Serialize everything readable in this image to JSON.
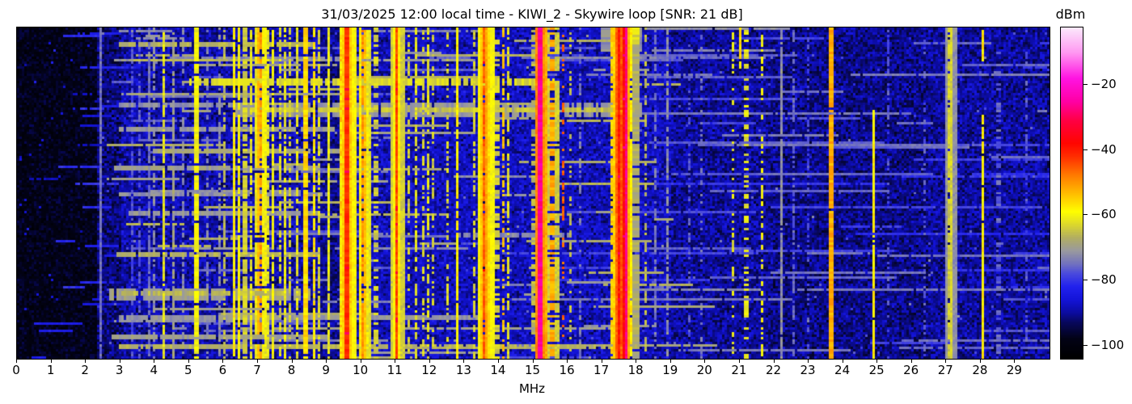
{
  "figure": {
    "title": "31/03/2025 12:00 local time - KIWI_2 - Skywire loop [SNR: 21 dB]"
  },
  "chart_data": {
    "type": "heatmap",
    "subtype": "radio-spectrogram",
    "title": "31/03/2025 12:00 local time - KIWI_2 - Skywire loop [SNR: 21 dB]",
    "xlabel": "MHz",
    "x_range": [
      0,
      30
    ],
    "x_ticks": [
      0,
      1,
      2,
      3,
      4,
      5,
      6,
      7,
      8,
      9,
      10,
      11,
      12,
      13,
      14,
      15,
      16,
      17,
      18,
      19,
      20,
      21,
      22,
      23,
      24,
      25,
      26,
      27,
      28,
      29
    ],
    "grid": false,
    "colorbar": {
      "label": "dBm",
      "ticks": [
        -20,
        -40,
        -60,
        -80,
        -100
      ],
      "vmin": -104,
      "vmax": -2.5,
      "position": "right"
    },
    "colormap": [
      [
        -104,
        "#000000"
      ],
      [
        -98,
        "#030316"
      ],
      [
        -93,
        "#08085c"
      ],
      [
        -90,
        "#0c0ca0"
      ],
      [
        -86,
        "#1414d8"
      ],
      [
        -82,
        "#2222ee"
      ],
      [
        -78,
        "#4a4ade"
      ],
      [
        -75,
        "#7272c0"
      ],
      [
        -71,
        "#9a9aa0"
      ],
      [
        -67,
        "#b2ae62"
      ],
      [
        -63,
        "#dcd82e"
      ],
      [
        -59,
        "#ffff00"
      ],
      [
        -54,
        "#ffc400"
      ],
      [
        -48,
        "#ff7e00"
      ],
      [
        -42,
        "#ff2e00"
      ],
      [
        -38,
        "#ff0600"
      ],
      [
        -31,
        "#ff0044"
      ],
      [
        -25,
        "#ff00a6"
      ],
      [
        -18,
        "#ff14e2"
      ],
      [
        -10,
        "#ff9af2"
      ],
      [
        -2.5,
        "#fce9fc"
      ]
    ],
    "noise": {
      "seed": 1337,
      "grid_cols": 426,
      "grid_rows": 137,
      "speckle_prob": 0.006,
      "speckle_boost": 13,
      "base_regions": [
        [
          0.0,
          2.3,
          -98,
          5
        ],
        [
          2.3,
          3.0,
          -92,
          7
        ],
        [
          3.0,
          8.8,
          -89,
          7
        ],
        [
          8.8,
          9.45,
          -91,
          6
        ],
        [
          9.45,
          12.3,
          -88,
          7
        ],
        [
          12.3,
          19.0,
          -88,
          7
        ],
        [
          19.0,
          21.8,
          -90,
          7
        ],
        [
          21.8,
          26.5,
          -91,
          7
        ],
        [
          26.5,
          30.0,
          -90,
          7
        ]
      ]
    },
    "signals_order": "freq_MHz, width_MHz, level_dBm, duty, y1_frac, y2_frac, halo_w_MHz, halo_level_dBm, sparkle_prob",
    "signals": [
      [
        2.46,
        0.05,
        -75,
        0.95,
        0,
        1,
        0,
        0,
        0
      ],
      [
        3.32,
        0.04,
        -78,
        0.7,
        0,
        1,
        0,
        0,
        0
      ],
      [
        3.55,
        0.04,
        -77,
        0.6,
        0,
        1,
        0,
        0,
        0
      ],
      [
        3.83,
        0.04,
        -75,
        0.8,
        0,
        1,
        0,
        0,
        0
      ],
      [
        4.0,
        0.04,
        -72,
        0.6,
        0,
        1,
        0,
        0,
        0
      ],
      [
        4.23,
        0.05,
        -62,
        0.9,
        0,
        1,
        0,
        0,
        0
      ],
      [
        4.57,
        0.04,
        -70,
        0.8,
        0,
        1,
        0,
        0,
        0
      ],
      [
        4.82,
        0.04,
        -73,
        0.5,
        0,
        1,
        0,
        0,
        0
      ],
      [
        5.21,
        0.05,
        -60,
        0.95,
        0,
        1,
        0,
        0,
        0
      ],
      [
        5.55,
        0.04,
        -74,
        0.5,
        0,
        1,
        0,
        0,
        0
      ],
      [
        5.85,
        0.04,
        -72,
        0.6,
        0,
        1,
        0,
        0,
        0
      ],
      [
        6.05,
        0.04,
        -66,
        0.7,
        0,
        1,
        0,
        0,
        0
      ],
      [
        6.28,
        0.06,
        -58,
        0.95,
        0,
        1,
        0,
        0,
        0
      ],
      [
        6.42,
        0.05,
        -59,
        0.9,
        0,
        1,
        0,
        0,
        0
      ],
      [
        6.62,
        0.04,
        -64,
        0.8,
        0,
        1,
        0,
        0,
        0
      ],
      [
        6.8,
        0.05,
        -62,
        0.75,
        0,
        1,
        0,
        0,
        0
      ],
      [
        7.05,
        0.05,
        -51,
        0.65,
        0,
        1,
        0.08,
        -62,
        0
      ],
      [
        7.19,
        0.04,
        -60,
        0.8,
        0,
        1,
        0,
        0,
        0
      ],
      [
        7.31,
        0.04,
        -62,
        0.7,
        0,
        1,
        0,
        0,
        0
      ],
      [
        7.43,
        0.05,
        -60,
        0.85,
        0,
        1,
        0,
        0,
        0
      ],
      [
        7.61,
        0.04,
        -63,
        0.6,
        0,
        1,
        0,
        0,
        0
      ],
      [
        7.79,
        0.05,
        -61,
        0.8,
        0,
        1,
        0,
        0,
        0
      ],
      [
        7.92,
        0.04,
        -64,
        0.6,
        0,
        1,
        0,
        0,
        0
      ],
      [
        8.12,
        0.05,
        -62,
        0.75,
        0,
        1,
        0,
        0,
        0
      ],
      [
        8.38,
        0.07,
        -56,
        0.95,
        0,
        1,
        0,
        0,
        0
      ],
      [
        8.61,
        0.06,
        -57,
        0.9,
        0,
        1,
        0,
        0,
        0
      ],
      [
        8.76,
        0.03,
        -63,
        0.7,
        0,
        1,
        0,
        0,
        0
      ],
      [
        9.06,
        0.04,
        -61,
        0.9,
        0,
        1,
        0,
        0,
        0
      ],
      [
        9.41,
        0.05,
        -55,
        0.5,
        0,
        1,
        0,
        0,
        0
      ],
      [
        9.58,
        0.07,
        -42,
        1,
        0,
        1,
        0.16,
        -60,
        0.05
      ],
      [
        9.95,
        0.05,
        -58,
        0.9,
        0,
        1,
        0,
        0,
        0
      ],
      [
        10.06,
        0.05,
        -50,
        0.75,
        0,
        1,
        0.06,
        -62,
        0
      ],
      [
        10.18,
        0.04,
        -60,
        0.6,
        0,
        1,
        0,
        0,
        0
      ],
      [
        10.42,
        0.04,
        -64,
        0.5,
        0,
        1,
        0,
        0,
        0
      ],
      [
        11.03,
        0.05,
        -44,
        1,
        0,
        1,
        0.08,
        -64,
        0.04
      ],
      [
        11.36,
        0.04,
        -64,
        0.5,
        0,
        1,
        0,
        0,
        0
      ],
      [
        11.61,
        0.05,
        -62,
        0.6,
        0,
        1,
        0,
        0,
        0
      ],
      [
        11.77,
        0.04,
        -63,
        0.5,
        0,
        1,
        0,
        0,
        0
      ],
      [
        11.91,
        0.05,
        -62,
        0.6,
        0,
        1,
        0,
        0,
        0
      ],
      [
        12.1,
        0.04,
        -64,
        0.45,
        0,
        1,
        0,
        0,
        0
      ],
      [
        12.51,
        0.04,
        -63,
        0.5,
        0,
        1,
        0,
        0,
        0
      ],
      [
        12.8,
        0.05,
        -58,
        0.95,
        0,
        1,
        0,
        0,
        0
      ],
      [
        13.28,
        0.04,
        -64,
        0.6,
        0,
        1,
        0,
        0,
        0
      ],
      [
        13.58,
        0.07,
        -46,
        0.9,
        0,
        1,
        0.14,
        -60,
        0.03
      ],
      [
        13.77,
        0.05,
        -60,
        0.7,
        0,
        1,
        0,
        0,
        0
      ],
      [
        13.95,
        0.12,
        -64,
        0.55,
        0,
        1,
        0,
        0,
        0
      ],
      [
        14.1,
        0.05,
        -54,
        0.6,
        0,
        1,
        0,
        0,
        0
      ],
      [
        14.24,
        0.04,
        -62,
        0.6,
        0,
        1,
        0,
        0,
        0
      ],
      [
        15.0,
        0.03,
        -66,
        0.5,
        0,
        1,
        0,
        0,
        0
      ],
      [
        15.21,
        0.05,
        -26,
        1,
        0,
        1,
        0.1,
        -52,
        0
      ],
      [
        15.56,
        0.05,
        -52,
        0.7,
        0,
        1,
        0.06,
        -64,
        0
      ],
      [
        15.88,
        0.05,
        -46,
        0.35,
        0,
        1,
        0,
        0,
        0
      ],
      [
        16.1,
        0.04,
        -65,
        0.4,
        0,
        1,
        0,
        0,
        0
      ],
      [
        16.35,
        0.03,
        -74,
        0.5,
        0,
        1,
        0,
        0,
        0
      ],
      [
        17.3,
        0.06,
        -55,
        0.8,
        0,
        1,
        0,
        0,
        0
      ],
      [
        17.47,
        0.06,
        -40,
        1,
        0,
        1,
        0.05,
        -55,
        0.03
      ],
      [
        17.57,
        0.07,
        -45,
        0.95,
        0,
        1,
        0,
        0,
        0
      ],
      [
        17.64,
        0.05,
        -38,
        1,
        0,
        1,
        0.04,
        -52,
        0.04
      ],
      [
        17.73,
        0.04,
        -27,
        1,
        0,
        1,
        0,
        0,
        0
      ],
      [
        17.86,
        0.1,
        -58,
        0.9,
        0,
        1,
        0,
        0,
        0
      ],
      [
        18.02,
        0.22,
        -68,
        0.9,
        0,
        1,
        0,
        0,
        0
      ],
      [
        17.6,
        1.2,
        -72,
        1,
        0,
        0.07,
        0,
        0,
        0
      ],
      [
        17.75,
        0.7,
        -63,
        1,
        0,
        0.05,
        0,
        0,
        0
      ],
      [
        18.3,
        0.04,
        -66,
        0.5,
        0,
        1,
        0,
        0,
        0
      ],
      [
        18.56,
        0.03,
        -74,
        0.6,
        0,
        1,
        0,
        0,
        0
      ],
      [
        18.92,
        0.04,
        -72,
        0.7,
        0,
        1,
        0,
        0,
        0
      ],
      [
        19.52,
        0.03,
        -77,
        0.4,
        0,
        1,
        0,
        0,
        0
      ],
      [
        19.9,
        0.03,
        -75,
        0.4,
        0,
        1,
        0,
        0,
        0
      ],
      [
        20.8,
        0.05,
        -62,
        0.35,
        0,
        1,
        0,
        0,
        0
      ],
      [
        21.05,
        0.05,
        -56,
        0.9,
        0,
        0.12,
        0,
        0,
        0
      ],
      [
        21.2,
        0.05,
        -62,
        0.4,
        0,
        1,
        0,
        0,
        0
      ],
      [
        21.65,
        0.06,
        -60,
        0.45,
        0,
        1,
        0,
        0,
        0
      ],
      [
        22.2,
        0.04,
        -72,
        0.95,
        0,
        1,
        0,
        0,
        0
      ],
      [
        22.55,
        0.03,
        -76,
        0.6,
        0,
        1,
        0,
        0,
        0
      ],
      [
        23.0,
        0.03,
        -78,
        0.4,
        0,
        1,
        0,
        0,
        0
      ],
      [
        23.66,
        0.05,
        -52,
        0.98,
        0,
        1,
        0,
        0,
        0
      ],
      [
        24.88,
        0.05,
        -58,
        0.95,
        0.25,
        1,
        0,
        0,
        0
      ],
      [
        25.32,
        0.03,
        -77,
        0.4,
        0,
        1,
        0,
        0,
        0
      ],
      [
        26.4,
        0.03,
        -77,
        0.35,
        0,
        1,
        0,
        0,
        0
      ],
      [
        27.1,
        0.09,
        -64,
        0.8,
        0,
        1,
        0.05,
        -72,
        0
      ],
      [
        28.08,
        0.05,
        -57,
        0.95,
        0,
        0.1,
        0,
        0,
        0
      ],
      [
        28.08,
        0.04,
        -58,
        0.95,
        0.27,
        1,
        0,
        0,
        0
      ],
      [
        28.52,
        0.03,
        -76,
        0.4,
        0,
        1,
        0,
        0,
        0
      ],
      [
        29.3,
        0.03,
        -77,
        0.35,
        0,
        1,
        0,
        0,
        0
      ]
    ],
    "h_bands_order": "y1_frac, y2_frac, f1_MHz, f2_MHz, level_dBm",
    "h_bands": [
      [
        0.05,
        0.056,
        3.0,
        8.6,
        -67
      ],
      [
        0.095,
        0.1,
        2.8,
        13.5,
        -71
      ],
      [
        0.16,
        0.172,
        5.0,
        15.6,
        -63
      ],
      [
        0.198,
        0.204,
        3.0,
        10.0,
        -69
      ],
      [
        0.228,
        0.268,
        6.4,
        18.1,
        -71
      ],
      [
        0.243,
        0.252,
        6.8,
        17.9,
        -65
      ],
      [
        0.232,
        0.24,
        3.0,
        6.4,
        -72
      ],
      [
        0.3,
        0.307,
        3.0,
        9.2,
        -71
      ],
      [
        0.37,
        0.377,
        4.0,
        9.6,
        -69
      ],
      [
        0.42,
        0.427,
        2.8,
        8.8,
        -70
      ],
      [
        0.5,
        0.506,
        3.0,
        9.0,
        -72
      ],
      [
        0.56,
        0.566,
        3.2,
        8.7,
        -71
      ],
      [
        0.625,
        0.631,
        12.8,
        16.0,
        -73
      ],
      [
        0.68,
        0.688,
        2.9,
        8.8,
        -67
      ],
      [
        0.79,
        0.822,
        2.7,
        8.6,
        -70
      ],
      [
        0.8,
        0.808,
        2.8,
        8.5,
        -66
      ],
      [
        0.875,
        0.881,
        3.0,
        13.6,
        -71
      ],
      [
        0.93,
        0.937,
        2.8,
        9.0,
        -70
      ],
      [
        0.963,
        0.97,
        3.0,
        18.0,
        -67
      ]
    ],
    "random_streak_groups": [
      {
        "count": 130,
        "f_min": 2.6,
        "f_max": 18.6,
        "len_min": 0.4,
        "len_max": 4.5,
        "level_min": -78,
        "level_max": -66
      },
      {
        "count": 60,
        "f_min": 14.0,
        "f_max": 30.0,
        "len_min": 1.0,
        "len_max": 9.0,
        "level_min": -81,
        "level_max": -74
      },
      {
        "count": 25,
        "f_min": 0.3,
        "f_max": 2.6,
        "len_min": 0.3,
        "len_max": 1.5,
        "level_min": -88,
        "level_max": -80
      }
    ]
  }
}
